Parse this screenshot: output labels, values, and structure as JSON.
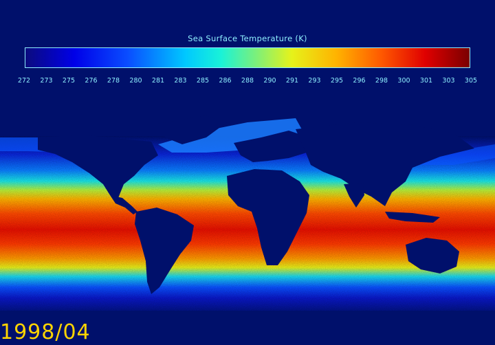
{
  "colorbar": {
    "title": "Sea Surface Temperature (K)",
    "ticks": [
      "272",
      "273",
      "275",
      "276",
      "278",
      "280",
      "281",
      "283",
      "285",
      "286",
      "288",
      "290",
      "291",
      "293",
      "295",
      "296",
      "298",
      "300",
      "301",
      "303",
      "305"
    ]
  },
  "map": {
    "variable": "Sea Surface Temperature",
    "units": "K",
    "projection": "equirectangular",
    "land_color": "#00106b",
    "color_scale": [
      "#0b0b7e",
      "#0000e8",
      "#0a4dff",
      "#00c8ff",
      "#19f2d8",
      "#7df07a",
      "#e6f21a",
      "#ffb300",
      "#ff5a00",
      "#e00000",
      "#7a0000"
    ]
  },
  "date_label": "1998/04"
}
